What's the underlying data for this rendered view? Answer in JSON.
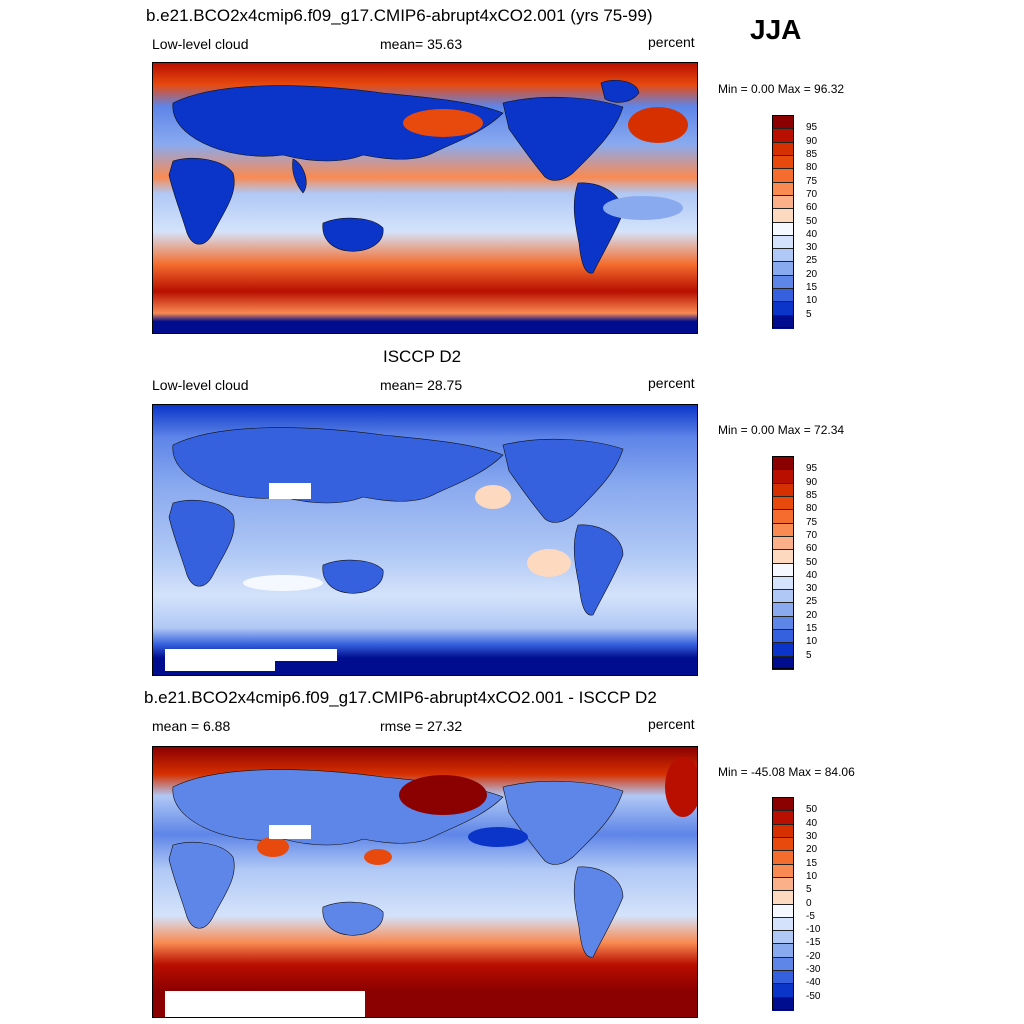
{
  "season": "JJA",
  "panels": [
    {
      "id": "model",
      "title": "b.e21.BCO2x4cmip6.f09_g17.CMIP6-abrupt4xCO2.001 (yrs 75-99)",
      "left_label": "Low-level cloud",
      "center_label": "mean=  35.63",
      "right_label": "percent",
      "minmax": "Min =   0.00 Max =  96.32",
      "labels": [
        "95",
        "90",
        "85",
        "80",
        "75",
        "70",
        "60",
        "50",
        "40",
        "30",
        "25",
        "20",
        "15",
        "10",
        "5"
      ],
      "colors": [
        "#8b0000",
        "#b80f00",
        "#d63000",
        "#e84a0e",
        "#f46d2e",
        "#f98a52",
        "#fcb08a",
        "#fdd9c0",
        "#f6f8ff",
        "#d4e3fb",
        "#b0c8f5",
        "#8aaaef",
        "#5e85e8",
        "#3561de",
        "#0a35c8",
        "#000d8f"
      ]
    },
    {
      "id": "obs",
      "title": "ISCCP D2",
      "left_label": "Low-level cloud",
      "center_label": "mean=  28.75",
      "right_label": "percent",
      "minmax": "Min =   0.00 Max =  72.34",
      "labels": [
        "95",
        "90",
        "85",
        "80",
        "75",
        "70",
        "60",
        "50",
        "40",
        "30",
        "25",
        "20",
        "15",
        "10",
        "5"
      ],
      "colors": [
        "#8b0000",
        "#b80f00",
        "#d63000",
        "#e84a0e",
        "#f46d2e",
        "#f98a52",
        "#fcb08a",
        "#fdd9c0",
        "#f6f8ff",
        "#d4e3fb",
        "#b0c8f5",
        "#8aaaef",
        "#5e85e8",
        "#3561de",
        "#0a35c8",
        "#000d8f"
      ]
    },
    {
      "id": "diff",
      "title": "b.e21.BCO2x4cmip6.f09_g17.CMIP6-abrupt4xCO2.001 - ISCCP D2",
      "left_label": "mean =   6.88",
      "center_label": "rmse =  27.32",
      "right_label": "percent",
      "minmax": "Min = -45.08 Max =  84.06",
      "labels": [
        "50",
        "40",
        "30",
        "20",
        "15",
        "10",
        "5",
        "0",
        "-5",
        "-10",
        "-15",
        "-20",
        "-30",
        "-40",
        "-50"
      ],
      "colors": [
        "#8b0000",
        "#b80f00",
        "#d63000",
        "#e84a0e",
        "#f46d2e",
        "#f98a52",
        "#fcb08a",
        "#fdd9c0",
        "#f6f8ff",
        "#d4e3fb",
        "#b0c8f5",
        "#8aaaef",
        "#5e85e8",
        "#3561de",
        "#0a35c8",
        "#000d8f"
      ]
    }
  ]
}
